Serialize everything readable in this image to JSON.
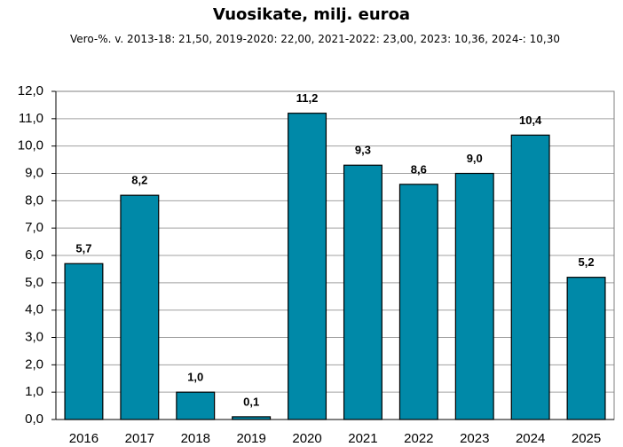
{
  "chart_data": {
    "type": "bar",
    "title": "Vuosikate, milj. euroa",
    "subtitle": "Vero-%. v. 2013-18: 21,50, 2019-2020: 22,00, 2021-2022: 23,00, 2023: 10,36, 2024-: 10,30",
    "categories": [
      "2016",
      "2017",
      "2018",
      "2019",
      "2020",
      "2021",
      "2022",
      "2023",
      "2024",
      "2025"
    ],
    "values": [
      5.7,
      8.2,
      1.0,
      0.1,
      11.2,
      9.3,
      8.6,
      9.0,
      10.4,
      5.2
    ],
    "value_labels": [
      "5,7",
      "8,2",
      "1,0",
      "0,1",
      "11,2",
      "9,3",
      "8,6",
      "9,0",
      "10,4",
      "5,2"
    ],
    "color": "#0089a8",
    "ylim": [
      0,
      12
    ],
    "yticks": [
      {
        "value": 0,
        "label": "0,0"
      },
      {
        "value": 1,
        "label": "1,0"
      },
      {
        "value": 2,
        "label": "2,0"
      },
      {
        "value": 3,
        "label": "3,0"
      },
      {
        "value": 4,
        "label": "4,0"
      },
      {
        "value": 5,
        "label": "5,0"
      },
      {
        "value": 6,
        "label": "6,0"
      },
      {
        "value": 7,
        "label": "7,0"
      },
      {
        "value": 8,
        "label": "8,0"
      },
      {
        "value": 9,
        "label": "9,0"
      },
      {
        "value": 10,
        "label": "10,0"
      },
      {
        "value": 11,
        "label": "11,0"
      },
      {
        "value": 12,
        "label": "12,0"
      }
    ],
    "grid": true
  }
}
